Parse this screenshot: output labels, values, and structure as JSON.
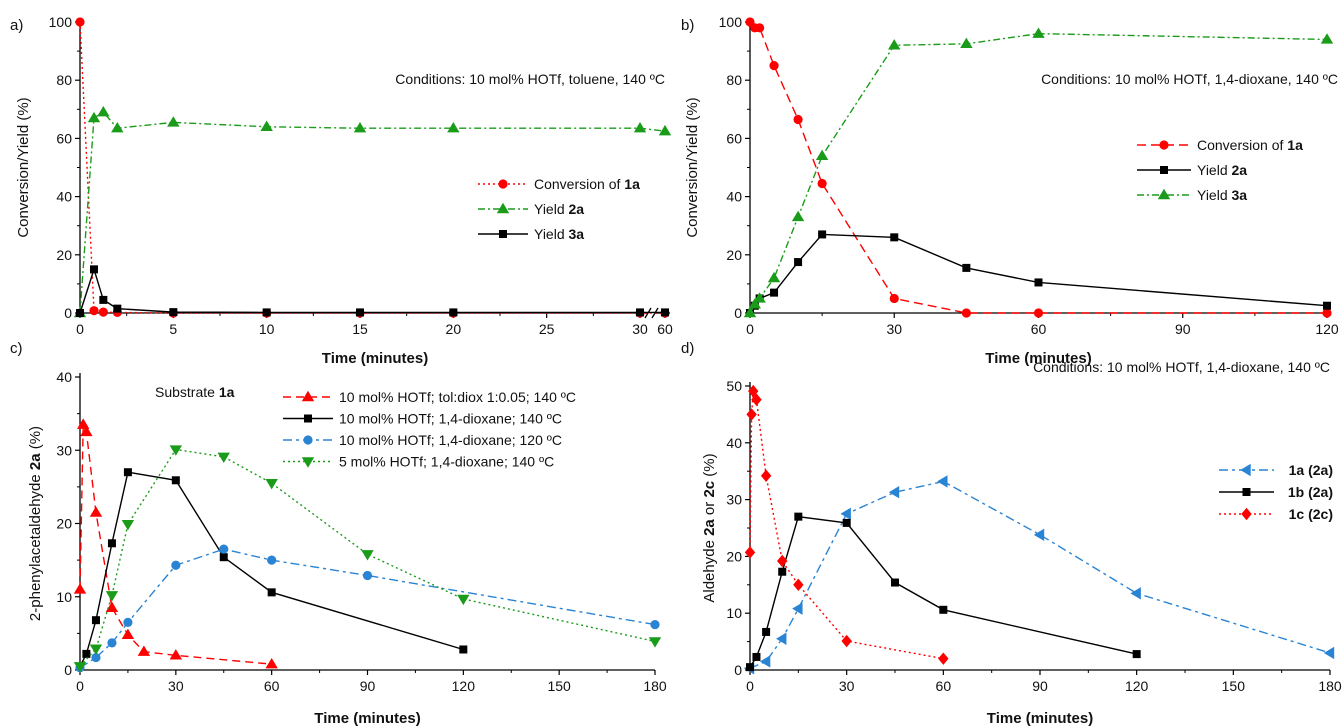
{
  "chart_data": [
    {
      "id": "a",
      "type": "line",
      "panel_label": "a)",
      "annotation": "Conditions: 10 mol% HOTf, toluene, 140 ºC",
      "xlabel": "Time (minutes)",
      "ylabel": "Conversion/Yield (%)",
      "xlim": [
        0,
        30
      ],
      "ylim": [
        0,
        100
      ],
      "x_ticks": [
        "0",
        "5",
        "10",
        "15",
        "20",
        "25",
        "30"
      ],
      "x_break_tick": "60",
      "y_ticks": [
        "0",
        "20",
        "40",
        "60",
        "80",
        "100"
      ],
      "legend_position": "right",
      "series": [
        {
          "legend": [
            "Conversion of ",
            "1a"
          ],
          "color": "#ff0000",
          "dash": "2,3",
          "marker": "circle",
          "x": [
            0,
            0.75,
            1.25,
            2,
            5,
            10,
            15,
            20,
            30,
            "60"
          ],
          "y": [
            100,
            0.8,
            0.3,
            0.2,
            0,
            0,
            0,
            0,
            0,
            0
          ]
        },
        {
          "legend": [
            "Yield ",
            "2a"
          ],
          "color": "#1a9c1a",
          "dash": "7,3,2,3",
          "marker": "triangle",
          "x": [
            0,
            0.75,
            1.25,
            2,
            5,
            10,
            15,
            20,
            30,
            "60"
          ],
          "y": [
            0,
            67,
            69,
            63.5,
            65.5,
            64,
            63.5,
            63.5,
            63.5,
            62.5
          ]
        },
        {
          "legend": [
            "Yield ",
            "3a"
          ],
          "color": "#000000",
          "dash": "",
          "marker": "square",
          "x": [
            0,
            0.75,
            1.25,
            2,
            5,
            10,
            15,
            20,
            30,
            "60"
          ],
          "y": [
            0,
            15,
            4.5,
            1.5,
            0.3,
            0.2,
            0.2,
            0.2,
            0.2,
            0.2
          ]
        }
      ]
    },
    {
      "id": "b",
      "type": "line",
      "panel_label": "b)",
      "annotation": "Conditions: 10 mol% HOTf, 1,4-dioxane, 140 ºC",
      "xlabel": "Time (minutes)",
      "ylabel": "Conversion/Yield (%)",
      "xlim": [
        0,
        120
      ],
      "ylim": [
        0,
        100
      ],
      "x_ticks": [
        "0",
        "30",
        "60",
        "90",
        "120"
      ],
      "y_ticks": [
        "0",
        "20",
        "40",
        "60",
        "80",
        "100"
      ],
      "legend_position": "right",
      "series": [
        {
          "legend": [
            "Conversion of ",
            "1a"
          ],
          "color": "#ff0000",
          "dash": "9,5",
          "marker": "circle",
          "x": [
            0,
            1,
            2,
            5,
            10,
            15,
            30,
            45,
            60,
            120
          ],
          "y": [
            100,
            98,
            98,
            85,
            66.5,
            44.5,
            5,
            0,
            0,
            0
          ]
        },
        {
          "legend": [
            "Yield ",
            "2a"
          ],
          "color": "#000000",
          "dash": "",
          "marker": "square",
          "x": [
            0,
            1,
            2,
            5,
            10,
            15,
            30,
            45,
            60,
            120
          ],
          "y": [
            0,
            2.5,
            5,
            7,
            17.5,
            27,
            26,
            15.5,
            10.5,
            2.5
          ]
        },
        {
          "legend": [
            "Yield ",
            "3a"
          ],
          "color": "#1a9c1a",
          "dash": "7,3,2,3",
          "marker": "triangle",
          "x": [
            0,
            1,
            2,
            5,
            10,
            15,
            30,
            45,
            60,
            120
          ],
          "y": [
            0,
            3,
            5,
            12,
            33,
            54,
            92,
            92.5,
            96,
            94
          ]
        }
      ]
    },
    {
      "id": "c",
      "type": "line",
      "panel_label": "c)",
      "annotation_parts": [
        "Substrate ",
        "1a"
      ],
      "xlabel": "Time (minutes)",
      "ylabel_parts": [
        "2-phenylacetaldehyde ",
        "2a",
        " (%)"
      ],
      "xlim": [
        0,
        180
      ],
      "ylim": [
        0,
        40
      ],
      "x_ticks": [
        "0",
        "30",
        "60",
        "90",
        "120",
        "150",
        "180"
      ],
      "y_ticks": [
        "0",
        "10",
        "20",
        "30",
        "40"
      ],
      "legend_position": "top",
      "series": [
        {
          "legend": [
            "10 mol% HOTf; tol:diox 1:0.05; 140 ºC"
          ],
          "color": "#ff0000",
          "dash": "8,5",
          "marker": "triangle",
          "x": [
            0,
            1,
            2,
            5,
            10,
            15,
            20,
            30,
            60
          ],
          "y": [
            11,
            33.5,
            32.5,
            21.5,
            8.5,
            4.8,
            2.5,
            2,
            0.8
          ]
        },
        {
          "legend": [
            "10 mol% HOTf; 1,4-dioxane; 140 ºC"
          ],
          "color": "#000000",
          "dash": "",
          "marker": "square",
          "x": [
            0,
            2,
            5,
            10,
            15,
            30,
            45,
            60,
            120
          ],
          "y": [
            0.5,
            2.2,
            6.8,
            17.3,
            27,
            25.9,
            15.4,
            10.6,
            2.8
          ]
        },
        {
          "legend": [
            "10 mol% HOTf; 1,4-dioxane; 120 ºC"
          ],
          "color": "#2a84d4",
          "dash": "9,4,3,4",
          "marker": "circle",
          "x": [
            0,
            5,
            10,
            15,
            30,
            45,
            60,
            90,
            180
          ],
          "y": [
            0.3,
            1.7,
            3.7,
            6.5,
            14.3,
            16.5,
            15,
            12.9,
            6.2
          ]
        },
        {
          "legend": [
            "5 mol% HOTf; 1,4-dioxane; 140 ºC"
          ],
          "color": "#1a9c1a",
          "dash": "2,3",
          "marker": "triangle-down",
          "x": [
            0,
            5,
            10,
            15,
            30,
            45,
            60,
            90,
            120,
            180
          ],
          "y": [
            0.5,
            2.9,
            10.2,
            19.9,
            30.1,
            29.1,
            25.5,
            15.8,
            9.7,
            3.9
          ]
        }
      ]
    },
    {
      "id": "d",
      "type": "line",
      "panel_label": "d)",
      "annotation": "Conditions: 10 mol% HOTf, 1,4-dioxane, 140 ºC",
      "xlabel": "Time (minutes)",
      "ylabel_parts": [
        "Aldehyde ",
        "2a",
        " or ",
        "2c",
        " (%)"
      ],
      "xlim": [
        0,
        180
      ],
      "ylim": [
        0,
        50
      ],
      "x_ticks": [
        "0",
        "30",
        "60",
        "90",
        "120",
        "150",
        "180"
      ],
      "y_ticks": [
        "0",
        "10",
        "20",
        "30",
        "40",
        "50"
      ],
      "legend_position": "right",
      "series": [
        {
          "legend": [
            "1a (2a)"
          ],
          "color": "#2a84d4",
          "dash": "9,4,3,4",
          "marker": "triangle-left",
          "x": [
            0,
            5,
            10,
            15,
            30,
            45,
            60,
            90,
            120,
            180
          ],
          "y": [
            0.3,
            1.5,
            5.5,
            10.8,
            27.5,
            31.3,
            33.2,
            23.8,
            13.5,
            3
          ]
        },
        {
          "legend": [
            "1b (2a)"
          ],
          "color": "#000000",
          "dash": "",
          "marker": "square",
          "x": [
            0,
            2,
            5,
            10,
            15,
            30,
            45,
            60,
            120
          ],
          "y": [
            0.5,
            2.3,
            6.7,
            17.3,
            27,
            25.9,
            15.4,
            10.6,
            2.8
          ]
        },
        {
          "legend": [
            "1c (2c)"
          ],
          "color": "#ff0000",
          "dash": "2,3",
          "marker": "diamond",
          "x": [
            0,
            0.5,
            1,
            2,
            5,
            10,
            15,
            30,
            60
          ],
          "y": [
            20.7,
            45,
            49.1,
            47.6,
            34.2,
            19.2,
            15,
            5.1,
            2
          ]
        }
      ]
    }
  ]
}
